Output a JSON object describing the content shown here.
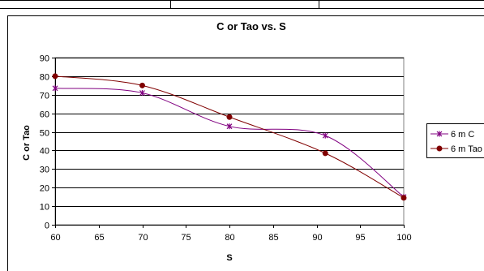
{
  "chart_data": {
    "type": "line",
    "title": "C or Tao vs. S",
    "xlabel": "S",
    "ylabel": "C or Tao",
    "xlim": [
      60,
      100
    ],
    "ylim": [
      0,
      90
    ],
    "x_ticks": [
      "60",
      "65",
      "70",
      "75",
      "80",
      "85",
      "90",
      "95",
      "100"
    ],
    "y_ticks": [
      "0",
      "10",
      "20",
      "30",
      "40",
      "50",
      "60",
      "70",
      "80",
      "90"
    ],
    "grid": "horizontal",
    "legend_position": "right",
    "series": [
      {
        "name": "6 m C",
        "color": "#800080",
        "marker": "star",
        "x": [
          60,
          70,
          80,
          91,
          100
        ],
        "y": [
          73.5,
          71,
          53,
          48,
          15
        ]
      },
      {
        "name": "6 m Tao",
        "color": "#800000",
        "marker": "circle",
        "x": [
          60,
          70,
          80,
          91,
          100
        ],
        "y": [
          80,
          75,
          58,
          38.5,
          14.5
        ]
      }
    ]
  }
}
